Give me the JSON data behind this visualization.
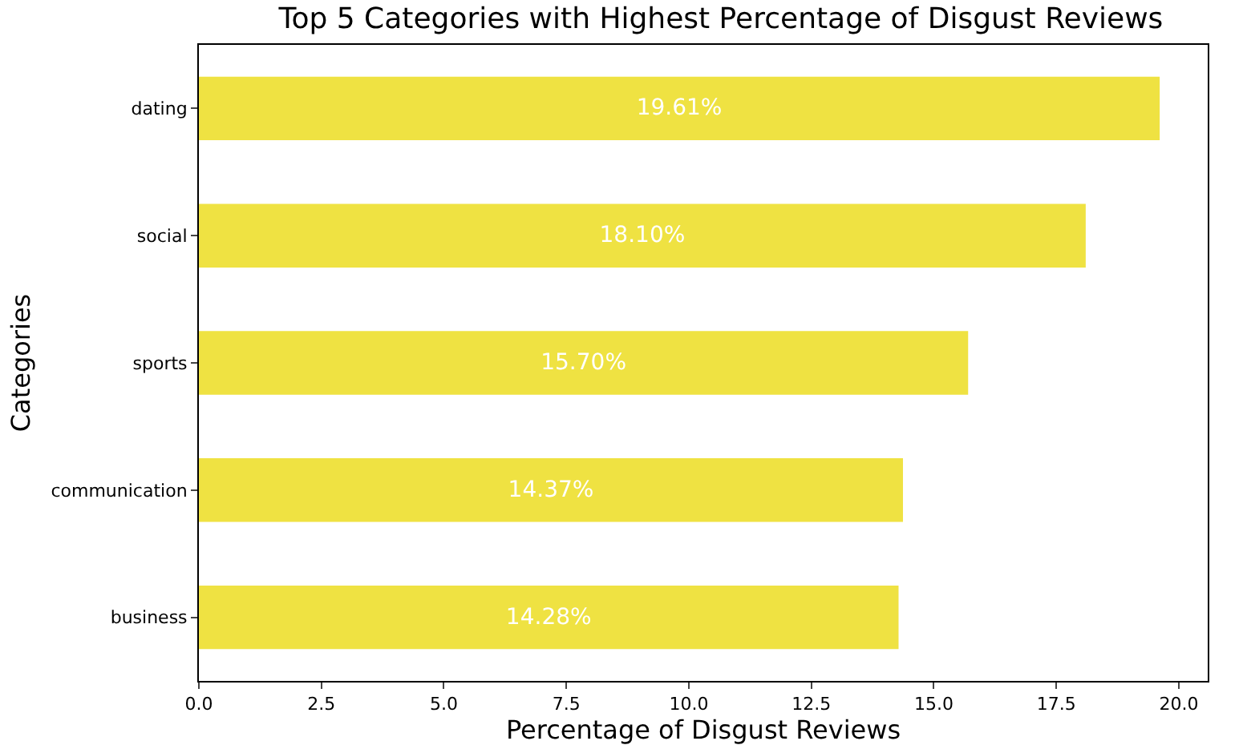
{
  "chart_data": {
    "type": "bar",
    "orientation": "horizontal",
    "title": "Top 5 Categories with Highest Percentage of Disgust Reviews",
    "xlabel": "Percentage of Disgust Reviews",
    "ylabel": "Categories",
    "categories": [
      "dating",
      "social",
      "sports",
      "communication",
      "business"
    ],
    "values": [
      19.61,
      18.1,
      15.7,
      14.37,
      14.28
    ],
    "value_labels": [
      "19.61%",
      "18.10%",
      "15.70%",
      "14.37%",
      "14.28%"
    ],
    "color": "#efe242",
    "xlim": [
      0,
      20.59
    ],
    "xticks": [
      {
        "value": 0,
        "label": "0.0"
      },
      {
        "value": 2.5,
        "label": "2.5"
      },
      {
        "value": 5,
        "label": "5.0"
      },
      {
        "value": 7.5,
        "label": "7.5"
      },
      {
        "value": 10,
        "label": "10.0"
      },
      {
        "value": 12.5,
        "label": "12.5"
      },
      {
        "value": 15,
        "label": "15.0"
      },
      {
        "value": 17.5,
        "label": "17.5"
      },
      {
        "value": 20,
        "label": "20.0"
      }
    ],
    "grid": false
  }
}
